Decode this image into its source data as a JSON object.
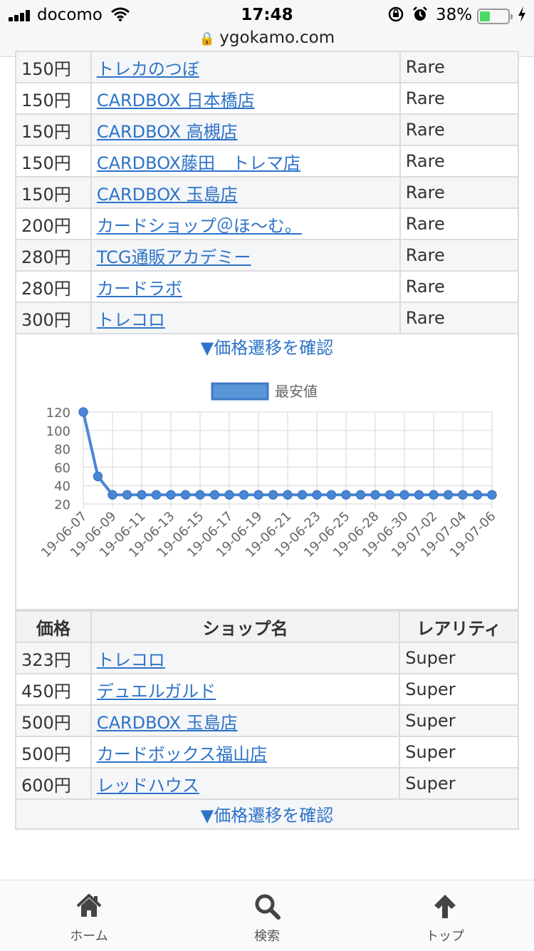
{
  "status_bar": {
    "carrier": "docomo",
    "time": "17:48",
    "battery": "38%",
    "battery_level": 0.38,
    "url": "ygokamo.com"
  },
  "rare_rows": [
    {
      "price": "150円",
      "shop": "トレカのつぼ",
      "rarity": "Rare"
    },
    {
      "price": "150円",
      "shop": "CARDBOX 日本橋店",
      "rarity": "Rare"
    },
    {
      "price": "150円",
      "shop": "CARDBOX 高槻店",
      "rarity": "Rare"
    },
    {
      "price": "150円",
      "shop": "CARDBOX藤田　トレマ店",
      "rarity": "Rare"
    },
    {
      "price": "150円",
      "shop": "CARDBOX 玉島店",
      "rarity": "Rare"
    },
    {
      "price": "200円",
      "shop": "カードショップ＠ほ〜む。",
      "rarity": "Rare"
    },
    {
      "price": "280円",
      "shop": "TCG通販アカデミー",
      "rarity": "Rare"
    },
    {
      "price": "280円",
      "shop": "カードラボ",
      "rarity": "Rare"
    },
    {
      "price": "300円",
      "shop": "トレコロ",
      "rarity": "Rare"
    }
  ],
  "confirm_link": "▼価格遷移を確認",
  "chart_data": {
    "type": "line",
    "legend": "最安値",
    "legend_position": "top",
    "grid": true,
    "ylim": [
      20,
      120
    ],
    "yticks": [
      20,
      40,
      60,
      80,
      100,
      120
    ],
    "x_tick_labels": [
      "19-06-07",
      "19-06-09",
      "19-06-11",
      "19-06-13",
      "19-06-15",
      "19-06-17",
      "19-06-19",
      "19-06-21",
      "19-06-23",
      "19-06-25",
      "19-06-28",
      "19-06-30",
      "19-07-02",
      "19-07-04",
      "19-07-06"
    ],
    "series": [
      {
        "name": "最安値",
        "color": "#4a86d4",
        "values": [
          120,
          50,
          30,
          30,
          30,
          30,
          30,
          30,
          30,
          30,
          30,
          30,
          30,
          30,
          30,
          30,
          30,
          30,
          30,
          30,
          30,
          30,
          30,
          30,
          30,
          30,
          30,
          30,
          30
        ]
      }
    ]
  },
  "super_table": {
    "headers": {
      "price": "価格",
      "shop": "ショップ名",
      "rarity": "レアリティ"
    },
    "rows": [
      {
        "price": "323円",
        "shop": "トレコロ",
        "rarity": "Super"
      },
      {
        "price": "450円",
        "shop": "デュエルガルド",
        "rarity": "Super"
      },
      {
        "price": "500円",
        "shop": "CARDBOX 玉島店",
        "rarity": "Super"
      },
      {
        "price": "500円",
        "shop": "カードボックス福山店",
        "rarity": "Super"
      },
      {
        "price": "600円",
        "shop": "レッドハウス",
        "rarity": "Super"
      }
    ]
  },
  "bottom_nav": {
    "home": "ホーム",
    "search": "検索",
    "top": "トップ"
  }
}
